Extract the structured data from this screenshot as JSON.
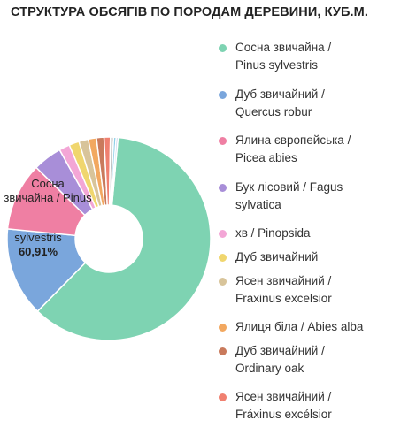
{
  "chart_data": {
    "type": "pie",
    "donut": true,
    "title": "СТРУКТУРА ОБСЯГІВ ПО ПОРОДАМ ДЕРЕВИНИ, КУБ.М.",
    "slices": [
      {
        "label": "Сосна звичайна / Pinus sylvestris",
        "value": 60.91,
        "color": "#7ed3b2"
      },
      {
        "label": "Дуб звичайний / Quercus robur",
        "value": 14.2,
        "color": "#7aa6dc"
      },
      {
        "label": "Ялина європейська / Picea abies",
        "value": 10.8,
        "color": "#ef7fa3"
      },
      {
        "label": "Бук лісовий / Fagus sylvatica",
        "value": 4.6,
        "color": "#a88ed8"
      },
      {
        "label": "хв / Pinopsida",
        "value": 1.7,
        "color": "#f3a6d6"
      },
      {
        "label": "Дуб звичайний",
        "value": 1.6,
        "color": "#f0d66e"
      },
      {
        "label": "Ясен звичайний / Fraxinus excelsior",
        "value": 1.5,
        "color": "#d8c49a"
      },
      {
        "label": "Ялиця біла / Abies alba",
        "value": 1.3,
        "color": "#f2a860"
      },
      {
        "label": "Дуб звичайний / Ordinary oak",
        "value": 1.2,
        "color": "#c97a5c"
      },
      {
        "label": "Ясен звичайний / Fráxinus excélsior",
        "value": 1.0,
        "color": "#f08070"
      },
      {
        "label": "",
        "value": 0.5,
        "color": "#c2c2c2"
      },
      {
        "label": "",
        "value": 0.4,
        "color": "#8fd0e8"
      },
      {
        "label": "",
        "value": 0.3,
        "color": "#b9c4e8"
      }
    ],
    "inner_label": {
      "line1": "Сосна",
      "line2": "звичайна / Pinus",
      "line3": "sylvestris",
      "percent": "60,91%"
    }
  },
  "legend": [
    {
      "line1": "Сосна звичайна /",
      "line2": "Pinus sylvestris",
      "color": "#7ed3b2"
    },
    {
      "line1": "Дуб звичайний /",
      "line2": "Quercus robur",
      "color": "#7aa6dc"
    },
    {
      "line1": "Ялина європейська /",
      "line2": "Picea abies",
      "color": "#ef7fa3"
    },
    {
      "line1": "Бук лісовий / Fagus",
      "line2": "sylvatica",
      "color": "#a88ed8"
    },
    {
      "line1": "хв / Pinopsida",
      "line2": "",
      "color": "#f3a6d6"
    },
    {
      "line1": "Дуб звичайний",
      "line2": "",
      "color": "#f0d66e"
    },
    {
      "line1": "Ясен звичайний /",
      "line2": "Fraxinus excelsior",
      "color": "#d8c49a"
    },
    {
      "line1": "Ялиця біла / Abies alba",
      "line2": "",
      "color": "#f2a860"
    },
    {
      "line1": "Дуб звичайний /",
      "line2": "Ordinary oak",
      "color": "#c97a5c"
    },
    {
      "line1": "Ясен звичайний /",
      "line2": "Fráxinus excélsior",
      "color": "#f08070"
    }
  ]
}
